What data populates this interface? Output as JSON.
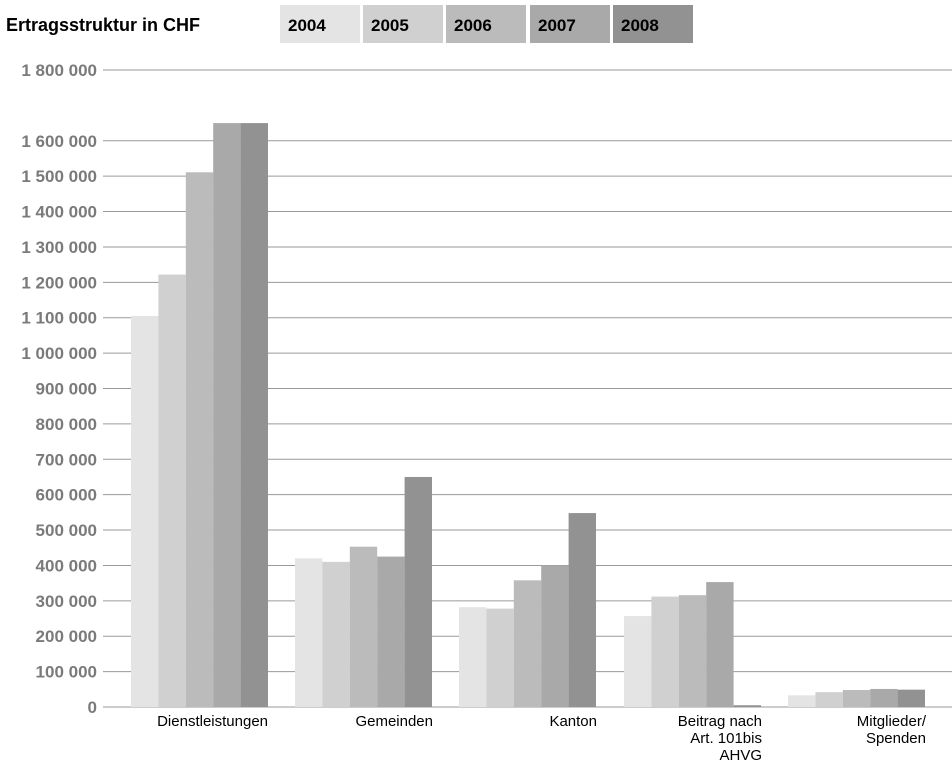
{
  "chart_data": {
    "type": "bar",
    "title": "Ertragsstruktur in CHF",
    "xlabel": "",
    "ylabel": "",
    "ylim": [
      0,
      1800000
    ],
    "yticks": [
      0,
      100000,
      200000,
      300000,
      400000,
      500000,
      600000,
      700000,
      800000,
      900000,
      1000000,
      1100000,
      1200000,
      1300000,
      1400000,
      1500000,
      1600000,
      1800000
    ],
    "ytick_labels": [
      "0",
      "100 000",
      "200 000",
      "300 000",
      "400 000",
      "500 000",
      "600 000",
      "700 000",
      "800 000",
      "900 000",
      "1 000 000",
      "1 100 000",
      "1 200 000",
      "1 300 000",
      "1 400 000",
      "1 500 000",
      "1 600 000",
      "1 800 000"
    ],
    "grid": true,
    "legend_position": "top",
    "categories": [
      [
        "Dienstleistungen"
      ],
      [
        "Gemeinden"
      ],
      [
        "Kanton"
      ],
      [
        "Beitrag nach",
        "Art. 101bis",
        "AHVG"
      ],
      [
        "Mitglieder/",
        "Spenden"
      ]
    ],
    "series": [
      {
        "name": "2004",
        "color": "#e3e4e3",
        "values": [
          1105000,
          420000,
          282000,
          257000,
          33000
        ]
      },
      {
        "name": "2005",
        "color": "#d0d0d1",
        "values": [
          1222000,
          410000,
          278000,
          312000,
          42000
        ]
      },
      {
        "name": "2006",
        "color": "#bbbbbb",
        "values": [
          1511000,
          453000,
          358000,
          316000,
          48000
        ]
      },
      {
        "name": "2007",
        "color": "#a9a9aa",
        "values": [
          1650000,
          425000,
          400000,
          353000,
          51000
        ]
      },
      {
        "name": "2008",
        "color": "#929293",
        "values": [
          1650000,
          650000,
          548000,
          5000,
          49000
        ]
      }
    ]
  }
}
